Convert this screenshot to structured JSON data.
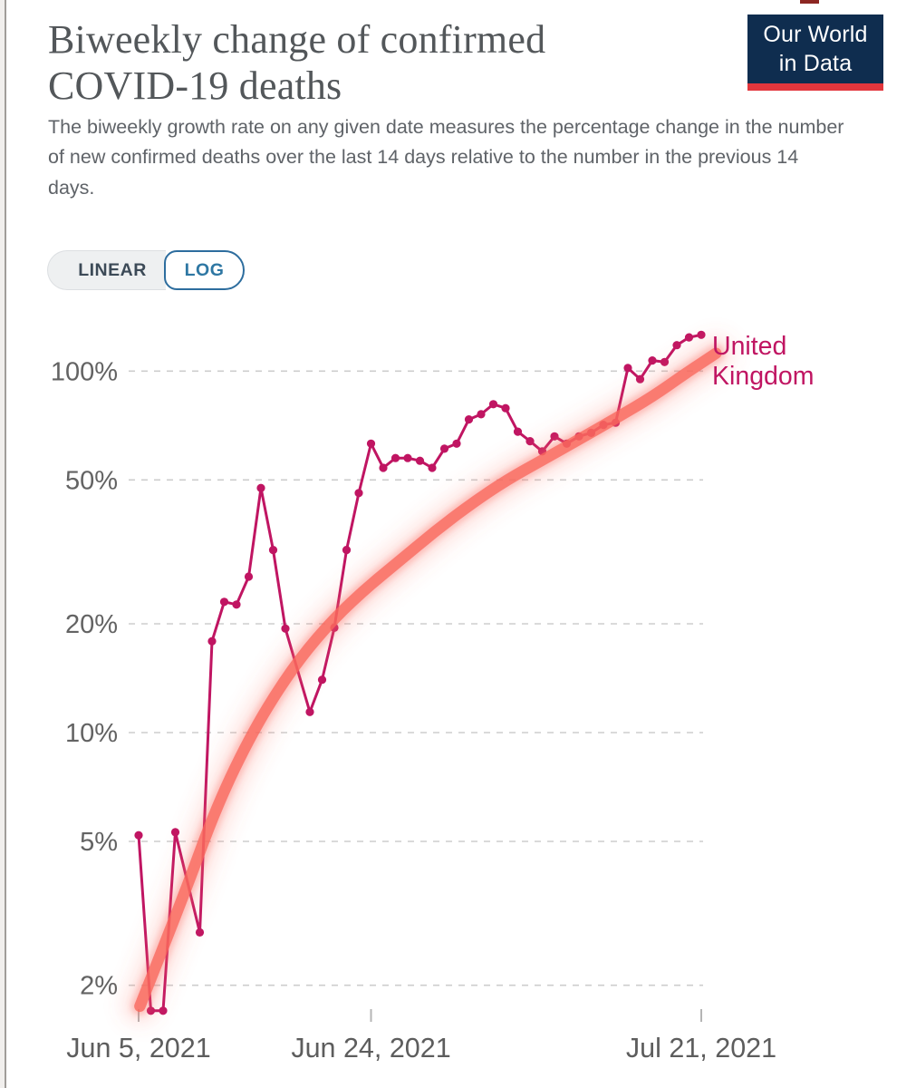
{
  "window": {
    "top_edge_mark_color": "#8C2622"
  },
  "header": {
    "title": "Biweekly change of confirmed COVID-19 deaths",
    "subtitle": "The biweekly growth rate on any given date measures the percentage change in the number of new confirmed deaths over the last 14 days relative to the number in the previous 14 days.",
    "logo": {
      "line1": "Our World",
      "line2": "in Data",
      "bg_color": "#0F2D4F",
      "bar_color": "#E2363C"
    }
  },
  "controls": {
    "scale_toggle": {
      "linear_label": "LINEAR",
      "log_label": "LOG",
      "selected": "LOG",
      "active_color": "#2D6D9E"
    }
  },
  "chart_data": {
    "type": "line",
    "y_scale": "log",
    "title": "Biweekly change of confirmed COVID-19 deaths",
    "grid": "dashed",
    "gridline_color": "#cdcdcd",
    "axis_text_color": "#636363",
    "ylim": [
      1.6,
      135
    ],
    "y_ticks": [
      {
        "label": "2%",
        "value": 2
      },
      {
        "label": "5%",
        "value": 5
      },
      {
        "label": "10%",
        "value": 10
      },
      {
        "label": "20%",
        "value": 20
      },
      {
        "label": "50%",
        "value": 50
      },
      {
        "label": "100%",
        "value": 100
      }
    ],
    "x_ticks": [
      {
        "label": "Jun 5, 2021",
        "day": 0
      },
      {
        "label": "Jun 24, 2021",
        "day": 19
      },
      {
        "label": "Jul 21, 2021",
        "day": 46
      }
    ],
    "series": [
      {
        "name": "United Kingdom",
        "label_lines": [
          "United",
          "Kingdom"
        ],
        "color": "#C01562",
        "points": [
          {
            "date": "Jun 5",
            "day": 0,
            "value": 5.2
          },
          {
            "date": "Jun 6",
            "day": 1,
            "value": 1.7
          },
          {
            "date": "Jun 7",
            "day": 2,
            "value": 1.7
          },
          {
            "date": "Jun 8",
            "day": 3,
            "value": 5.3
          },
          {
            "date": "Jun 10",
            "day": 5,
            "value": 2.8
          },
          {
            "date": "Jun 11",
            "day": 6,
            "value": 17.9
          },
          {
            "date": "Jun 12",
            "day": 7,
            "value": 23
          },
          {
            "date": "Jun 13",
            "day": 8,
            "value": 22.6
          },
          {
            "date": "Jun 14",
            "day": 9,
            "value": 27
          },
          {
            "date": "Jun 15",
            "day": 10,
            "value": 47.5
          },
          {
            "date": "Jun 16",
            "day": 11,
            "value": 32
          },
          {
            "date": "Jun 17",
            "day": 12,
            "value": 19.4
          },
          {
            "date": "Jun 19",
            "day": 14,
            "value": 11.4
          },
          {
            "date": "Jun 20",
            "day": 15,
            "value": 14
          },
          {
            "date": "Jun 21",
            "day": 16,
            "value": 19.5
          },
          {
            "date": "Jun 22",
            "day": 17,
            "value": 32
          },
          {
            "date": "Jun 23",
            "day": 18,
            "value": 46
          },
          {
            "date": "Jun 24",
            "day": 19,
            "value": 63
          },
          {
            "date": "Jun 25",
            "day": 20,
            "value": 54
          },
          {
            "date": "Jun 26",
            "day": 21,
            "value": 57.5
          },
          {
            "date": "Jun 27",
            "day": 22,
            "value": 57.5
          },
          {
            "date": "Jun 28",
            "day": 23,
            "value": 56.5
          },
          {
            "date": "Jun 29",
            "day": 24,
            "value": 54
          },
          {
            "date": "Jun 30",
            "day": 25,
            "value": 61
          },
          {
            "date": "Jul 1",
            "day": 26,
            "value": 63
          },
          {
            "date": "Jul 2",
            "day": 27,
            "value": 73.5
          },
          {
            "date": "Jul 3",
            "day": 28,
            "value": 76
          },
          {
            "date": "Jul 4",
            "day": 29,
            "value": 81
          },
          {
            "date": "Jul 5",
            "day": 30,
            "value": 79
          },
          {
            "date": "Jul 6",
            "day": 31,
            "value": 68
          },
          {
            "date": "Jul 7",
            "day": 32,
            "value": 64
          },
          {
            "date": "Jul 8",
            "day": 33,
            "value": 60
          },
          {
            "date": "Jul 9",
            "day": 34,
            "value": 66
          },
          {
            "date": "Jul 10",
            "day": 35,
            "value": 63
          },
          {
            "date": "Jul 11",
            "day": 36,
            "value": 66
          },
          {
            "date": "Jul 12",
            "day": 37,
            "value": 67.5
          },
          {
            "date": "Jul 13",
            "day": 38,
            "value": 71
          },
          {
            "date": "Jul 14",
            "day": 39,
            "value": 72
          },
          {
            "date": "Jul 15",
            "day": 40,
            "value": 102
          },
          {
            "date": "Jul 16",
            "day": 41,
            "value": 95
          },
          {
            "date": "Jul 17",
            "day": 42,
            "value": 107
          },
          {
            "date": "Jul 18",
            "day": 43,
            "value": 106
          },
          {
            "date": "Jul 19",
            "day": 44,
            "value": 118
          },
          {
            "date": "Jul 20",
            "day": 45,
            "value": 124
          },
          {
            "date": "Jul 21",
            "day": 46,
            "value": 126
          }
        ]
      }
    ],
    "annotation": {
      "kind": "hand-drawn-trend-highlight",
      "color": "#F9685C",
      "points": [
        [
          0.1,
          1.75
        ],
        [
          3.5,
          3.4
        ],
        [
          6.4,
          6.3
        ],
        [
          9.4,
          10.2
        ],
        [
          12.4,
          14.8
        ],
        [
          15.3,
          19.6
        ],
        [
          18.3,
          24.6
        ],
        [
          21.3,
          29.8
        ],
        [
          24.2,
          36
        ],
        [
          27.2,
          43
        ],
        [
          30.1,
          50
        ],
        [
          33.1,
          57
        ],
        [
          36.1,
          65
        ],
        [
          39.0,
          74
        ],
        [
          42.0,
          85
        ],
        [
          44.6,
          98
        ],
        [
          47.2,
          112
        ]
      ]
    }
  }
}
